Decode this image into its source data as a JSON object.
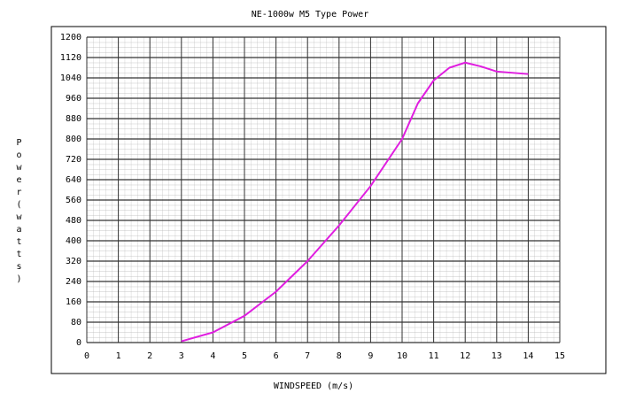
{
  "chart_data": {
    "type": "line",
    "title": "NE-1000w M5 Type Power",
    "x_label": "WINDSPEED (m/s)",
    "y_label": "Power(watts)",
    "x": [
      3,
      4,
      5,
      6,
      7,
      8,
      9,
      10,
      10.5,
      11,
      11.5,
      12,
      12.5,
      13,
      14
    ],
    "series": [
      {
        "name": "Power",
        "color": "#e01ee0",
        "values": [
          5,
          40,
          105,
          200,
          320,
          460,
          615,
          800,
          940,
          1030,
          1080,
          1100,
          1085,
          1065,
          1055
        ]
      }
    ],
    "xlim": [
      0,
      15
    ],
    "xticks": [
      0,
      1,
      2,
      3,
      4,
      5,
      6,
      7,
      8,
      9,
      10,
      11,
      12,
      13,
      14,
      15
    ],
    "ylim": [
      0,
      1200
    ],
    "yticks": [
      0,
      80,
      160,
      240,
      320,
      400,
      480,
      560,
      640,
      720,
      800,
      880,
      960,
      1040,
      1120,
      1200
    ],
    "grid": true
  }
}
